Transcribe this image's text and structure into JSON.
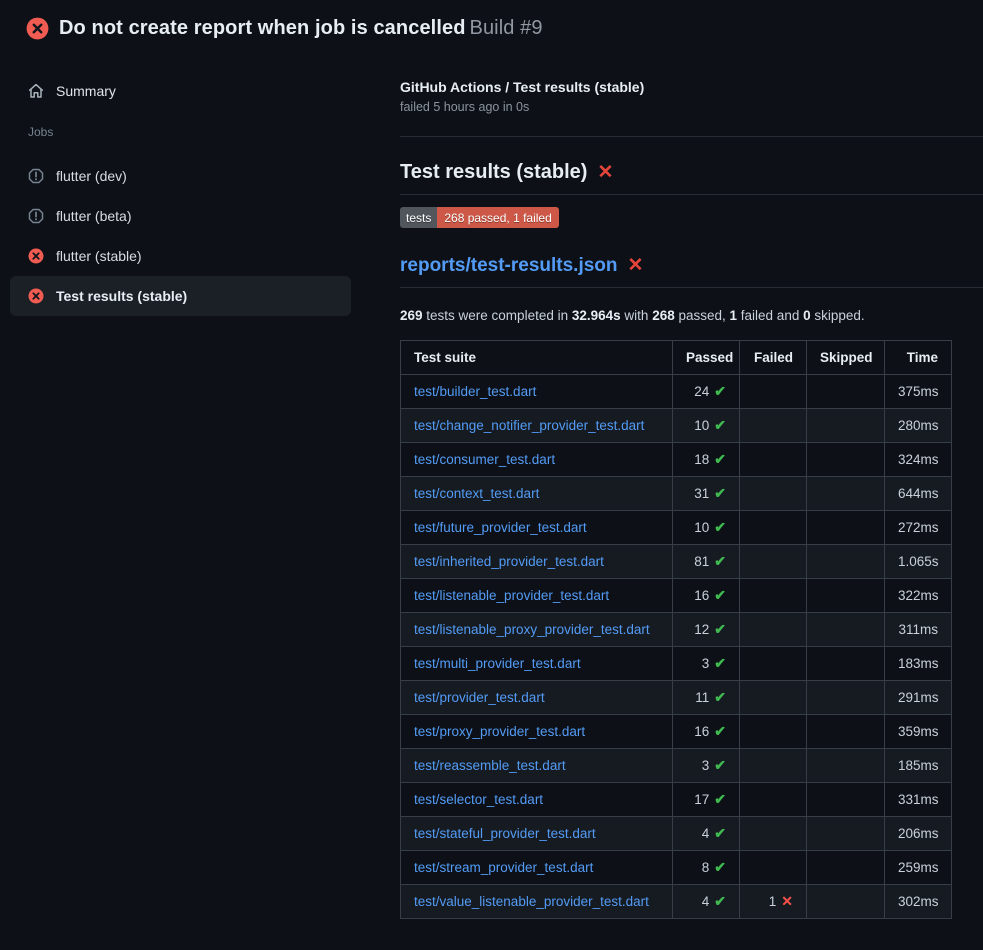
{
  "page": {
    "title": "Do not create report when job is cancelled",
    "build_label": "Build #9"
  },
  "sidebar": {
    "summary_label": "Summary",
    "jobs_label": "Jobs",
    "jobs": [
      {
        "label": "flutter (dev)",
        "status": "stale",
        "selected": false
      },
      {
        "label": "flutter (beta)",
        "status": "stale",
        "selected": false
      },
      {
        "label": "flutter (stable)",
        "status": "failed",
        "selected": false
      },
      {
        "label": "Test results (stable)",
        "status": "failed",
        "selected": true
      }
    ]
  },
  "main": {
    "breadcrumb": "GitHub Actions / Test results (stable)",
    "run_meta": "failed 5 hours ago in 0s",
    "section_title": "Test results (stable)",
    "badge": {
      "label": "tests",
      "value": "268 passed, 1 failed"
    },
    "report_title": "reports/test-results.json",
    "summary_parts": [
      {
        "text": "269",
        "bold": true
      },
      {
        "text": " tests were completed in ",
        "bold": false
      },
      {
        "text": "32.964s",
        "bold": true
      },
      {
        "text": " with ",
        "bold": false
      },
      {
        "text": "268",
        "bold": true
      },
      {
        "text": " passed, ",
        "bold": false
      },
      {
        "text": "1",
        "bold": true
      },
      {
        "text": " failed and ",
        "bold": false
      },
      {
        "text": "0",
        "bold": true
      },
      {
        "text": " skipped.",
        "bold": false
      }
    ]
  },
  "table": {
    "headers": [
      "Test suite",
      "Passed",
      "Failed",
      "Skipped",
      "Time"
    ],
    "rows": [
      {
        "suite": "test/builder_test.dart",
        "passed": "24",
        "failed": "",
        "skipped": "",
        "time": "375ms"
      },
      {
        "suite": "test/change_notifier_provider_test.dart",
        "passed": "10",
        "failed": "",
        "skipped": "",
        "time": "280ms"
      },
      {
        "suite": "test/consumer_test.dart",
        "passed": "18",
        "failed": "",
        "skipped": "",
        "time": "324ms"
      },
      {
        "suite": "test/context_test.dart",
        "passed": "31",
        "failed": "",
        "skipped": "",
        "time": "644ms"
      },
      {
        "suite": "test/future_provider_test.dart",
        "passed": "10",
        "failed": "",
        "skipped": "",
        "time": "272ms"
      },
      {
        "suite": "test/inherited_provider_test.dart",
        "passed": "81",
        "failed": "",
        "skipped": "",
        "time": "1.065s"
      },
      {
        "suite": "test/listenable_provider_test.dart",
        "passed": "16",
        "failed": "",
        "skipped": "",
        "time": "322ms"
      },
      {
        "suite": "test/listenable_proxy_provider_test.dart",
        "passed": "12",
        "failed": "",
        "skipped": "",
        "time": "311ms"
      },
      {
        "suite": "test/multi_provider_test.dart",
        "passed": "3",
        "failed": "",
        "skipped": "",
        "time": "183ms"
      },
      {
        "suite": "test/provider_test.dart",
        "passed": "11",
        "failed": "",
        "skipped": "",
        "time": "291ms"
      },
      {
        "suite": "test/proxy_provider_test.dart",
        "passed": "16",
        "failed": "",
        "skipped": "",
        "time": "359ms"
      },
      {
        "suite": "test/reassemble_test.dart",
        "passed": "3",
        "failed": "",
        "skipped": "",
        "time": "185ms"
      },
      {
        "suite": "test/selector_test.dart",
        "passed": "17",
        "failed": "",
        "skipped": "",
        "time": "331ms"
      },
      {
        "suite": "test/stateful_provider_test.dart",
        "passed": "4",
        "failed": "",
        "skipped": "",
        "time": "206ms"
      },
      {
        "suite": "test/stream_provider_test.dart",
        "passed": "8",
        "failed": "",
        "skipped": "",
        "time": "259ms"
      },
      {
        "suite": "test/value_listenable_provider_test.dart",
        "passed": "4",
        "failed": "1",
        "skipped": "",
        "time": "302ms"
      }
    ]
  },
  "icons": {
    "check_glyph": "✔",
    "fail_glyph": "✕"
  },
  "colors": {
    "background": "#0d1117",
    "link_blue": "#539bf5",
    "pass_green": "#3fb950",
    "fail_red": "#f85149",
    "icon_red": "#f15c52",
    "badge_gray": "#50565c",
    "badge_red": "#cd5847",
    "selected_item_bg": "#1b2027"
  }
}
